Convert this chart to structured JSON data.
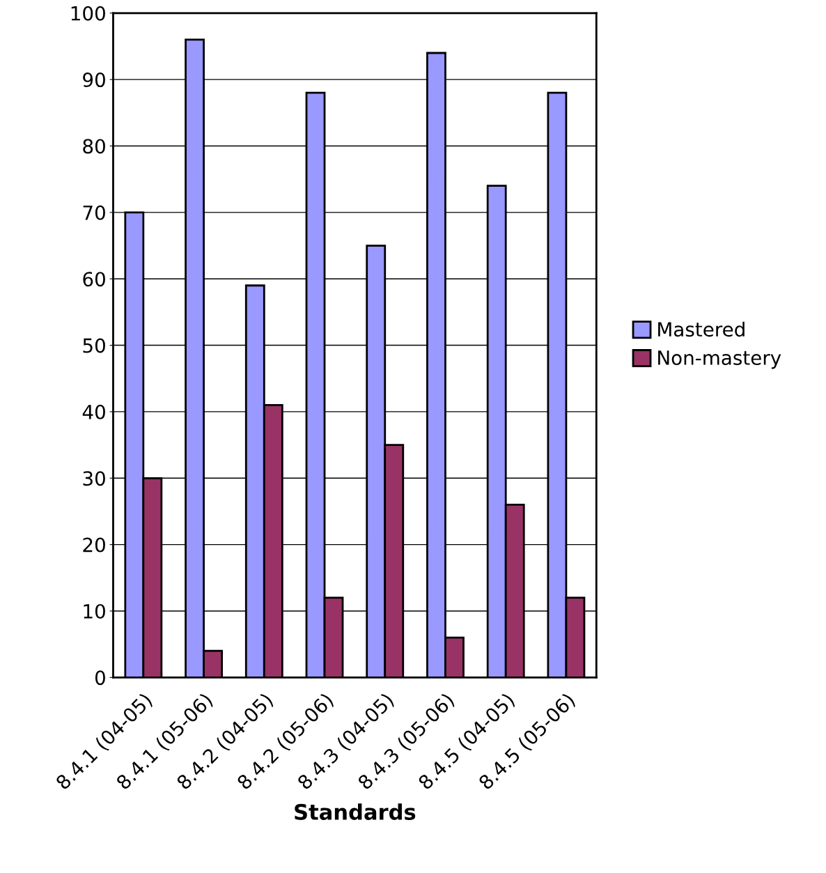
{
  "chart_data": {
    "type": "bar",
    "xlabel": "Standards",
    "categories": [
      "8.4.1 (04-05)",
      "8.4.1 (05-06)",
      "8.4.2 (04-05)",
      "8.4.2 (05-06)",
      "8.4.3 (04-05)",
      "8.4.3 (05-06)",
      "8.4.5 (04-05)",
      "8.4.5 (05-06)"
    ],
    "series": [
      {
        "name": "Mastered",
        "color": "#9999ff",
        "values": [
          70,
          96,
          59,
          88,
          65,
          94,
          74,
          88
        ]
      },
      {
        "name": "Non-mastery",
        "color": "#993366",
        "values": [
          30,
          4,
          41,
          12,
          35,
          6,
          26,
          12
        ]
      }
    ],
    "ylim": [
      0,
      100
    ],
    "yticks": [
      0,
      10,
      20,
      30,
      40,
      50,
      60,
      70,
      80,
      90,
      100
    ],
    "grid": "y",
    "legend": "right"
  }
}
